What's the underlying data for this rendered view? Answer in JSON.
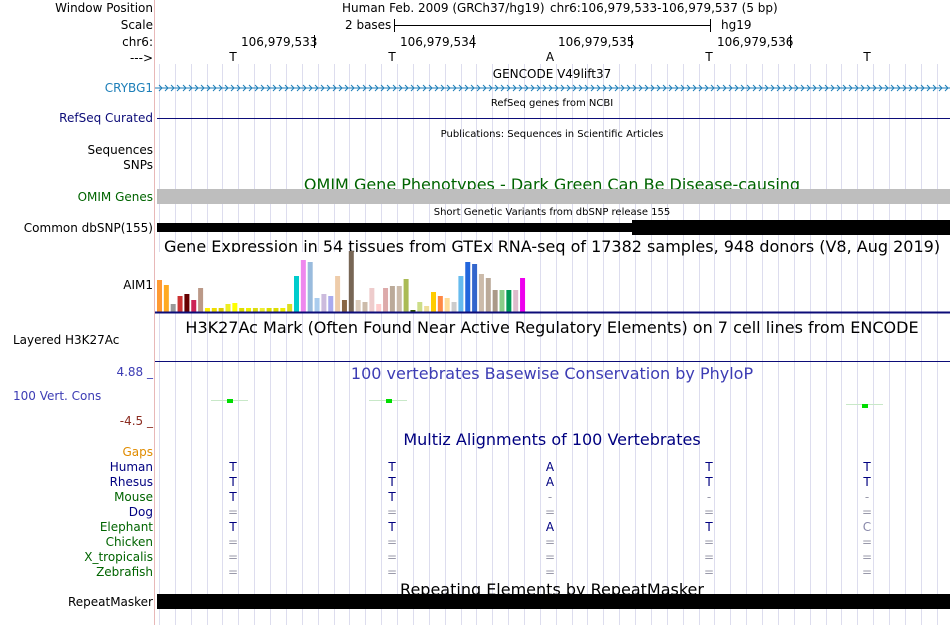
{
  "header": {
    "window_position_label": "Window Position",
    "scale_label": "Scale",
    "chr_label": "chr6:",
    "strand_label": "--->",
    "assembly_text": "Human Feb. 2009 (GRCh37/hg19)",
    "coords_text": "chr6:106,979,533-106,979,537 (5 bp)",
    "scale_text": "2 bases",
    "assembly_short": "hg19",
    "positions": [
      "106,979,533",
      "106,979,534",
      "106,979,535",
      "106,979,536"
    ],
    "bases": [
      "T",
      "T",
      "A",
      "T",
      "T"
    ]
  },
  "tracks": {
    "gencode": {
      "title": "GENCODE V49lift37",
      "gene": "CRYBG1"
    },
    "refseq": {
      "title": "RefSeq genes from NCBI",
      "label": "RefSeq Curated"
    },
    "publications": {
      "title": "Publications: Sequences in Scientific Articles",
      "label_sequences": "Sequences",
      "label_snps": "SNPs"
    },
    "omim": {
      "title": "OMIM Gene Phenotypes - Dark Green Can Be Disease-causing",
      "label": "OMIM Genes"
    },
    "dbsnp": {
      "title": "Short Genetic Variants from dbSNP release 155",
      "label": "Common dbSNP(155)"
    },
    "gtex": {
      "title": "Gene Expression in 54 tissues from GTEx RNA-seq of 17382 samples, 948 donors (V8, Aug 2019)",
      "label": "AIM1"
    },
    "h3k27ac": {
      "title": "H3K27Ac Mark (Often Found Near Active Regulatory Elements) on 7 cell lines from ENCODE",
      "label": "Layered H3K27Ac"
    },
    "phylop": {
      "title": "100 vertebrates Basewise Conservation by PhyloP",
      "label": "100 Vert. Cons",
      "max": "4.88 _",
      "min": "-4.5 _"
    },
    "multiz": {
      "title": "Multiz Alignments of 100 Vertebrates",
      "gaps_label": "Gaps",
      "species": [
        {
          "name": "Human",
          "color": "#000080",
          "bases": [
            "T",
            "T",
            "A",
            "T",
            "T"
          ]
        },
        {
          "name": "Rhesus",
          "color": "#000080",
          "bases": [
            "T",
            "T",
            "A",
            "T",
            "T"
          ]
        },
        {
          "name": "Mouse",
          "color": "#006400",
          "bases": [
            "T",
            "T",
            "-",
            "-",
            "-"
          ]
        },
        {
          "name": "Dog",
          "color": "#000080",
          "bases": [
            "=",
            "=",
            "=",
            "=",
            "="
          ]
        },
        {
          "name": "Elephant",
          "color": "#006400",
          "bases": [
            "T",
            "T",
            "A",
            "T",
            "C"
          ]
        },
        {
          "name": "Chicken",
          "color": "#006400",
          "bases": [
            "=",
            "=",
            "=",
            "=",
            "="
          ]
        },
        {
          "name": "X_tropicalis",
          "color": "#006400",
          "bases": [
            "=",
            "=",
            "=",
            "=",
            "="
          ]
        },
        {
          "name": "Zebrafish",
          "color": "#006400",
          "bases": [
            "=",
            "=",
            "=",
            "=",
            "="
          ]
        }
      ]
    },
    "repeatmasker": {
      "title": "Repeating Elements by RepeatMasker",
      "label": "RepeatMasker"
    }
  },
  "gtex_bars": [
    {
      "v": 32,
      "c": "#FF9933"
    },
    {
      "v": 27,
      "c": "#FFAA22"
    },
    {
      "v": 8,
      "c": "#999999"
    },
    {
      "v": 16,
      "c": "#CC3333"
    },
    {
      "v": 18,
      "c": "#660000"
    },
    {
      "v": 12,
      "c": "#CC2255"
    },
    {
      "v": 24,
      "c": "#BB9988"
    },
    {
      "v": 4,
      "c": "#FFEE00"
    },
    {
      "v": 4,
      "c": "#EEDD00"
    },
    {
      "v": 4,
      "c": "#DDCC00"
    },
    {
      "v": 8,
      "c": "#EEEE22"
    },
    {
      "v": 9,
      "c": "#FFFF00"
    },
    {
      "v": 4,
      "c": "#DDDD00"
    },
    {
      "v": 4,
      "c": "#EEEE00"
    },
    {
      "v": 4,
      "c": "#DDDD11"
    },
    {
      "v": 4,
      "c": "#EEEE33"
    },
    {
      "v": 4,
      "c": "#DDDD00"
    },
    {
      "v": 4,
      "c": "#DDDD00"
    },
    {
      "v": 4,
      "c": "#EEEE00"
    },
    {
      "v": 8,
      "c": "#DDDD22"
    },
    {
      "v": 36,
      "c": "#00CCCC"
    },
    {
      "v": 52,
      "c": "#EE88EE"
    },
    {
      "v": 50,
      "c": "#99BBDD"
    },
    {
      "v": 14,
      "c": "#AACCEE"
    },
    {
      "v": 18,
      "c": "#CCBBDD"
    },
    {
      "v": 16,
      "c": "#AAAAEE"
    },
    {
      "v": 36,
      "c": "#EECCAA"
    },
    {
      "v": 12,
      "c": "#886644"
    },
    {
      "v": 61,
      "c": "#776655"
    },
    {
      "v": 12,
      "c": "#DDCCBB"
    },
    {
      "v": 10,
      "c": "#CCBBAA"
    },
    {
      "v": 24,
      "c": "#EECCCC"
    },
    {
      "v": 8,
      "c": "#FFCCCC"
    },
    {
      "v": 24,
      "c": "#DDAAAA"
    },
    {
      "v": 26,
      "c": "#BBAA99"
    },
    {
      "v": 26,
      "c": "#CCBBAA"
    },
    {
      "v": 33,
      "c": "#AABB55"
    },
    {
      "v": 2,
      "c": "#335500"
    },
    {
      "v": 10,
      "c": "#CCDD88"
    },
    {
      "v": 6,
      "c": "#EEDD99"
    },
    {
      "v": 20,
      "c": "#FFCC00"
    },
    {
      "v": 16,
      "c": "#FF8844"
    },
    {
      "v": 14,
      "c": "#FFDD99"
    },
    {
      "v": 10,
      "c": "#CCCCCC"
    },
    {
      "v": 36,
      "c": "#66BBEE"
    },
    {
      "v": 50,
      "c": "#2266DD"
    },
    {
      "v": 48,
      "c": "#3366CC"
    },
    {
      "v": 38,
      "c": "#CCBBAA"
    },
    {
      "v": 34,
      "c": "#BBAA99"
    },
    {
      "v": 22,
      "c": "#AA9988"
    },
    {
      "v": 22,
      "c": "#88CC88"
    },
    {
      "v": 22,
      "c": "#009955"
    },
    {
      "v": 22,
      "c": "#DDBBCC"
    },
    {
      "v": 34,
      "c": "#EE00EE"
    }
  ]
}
